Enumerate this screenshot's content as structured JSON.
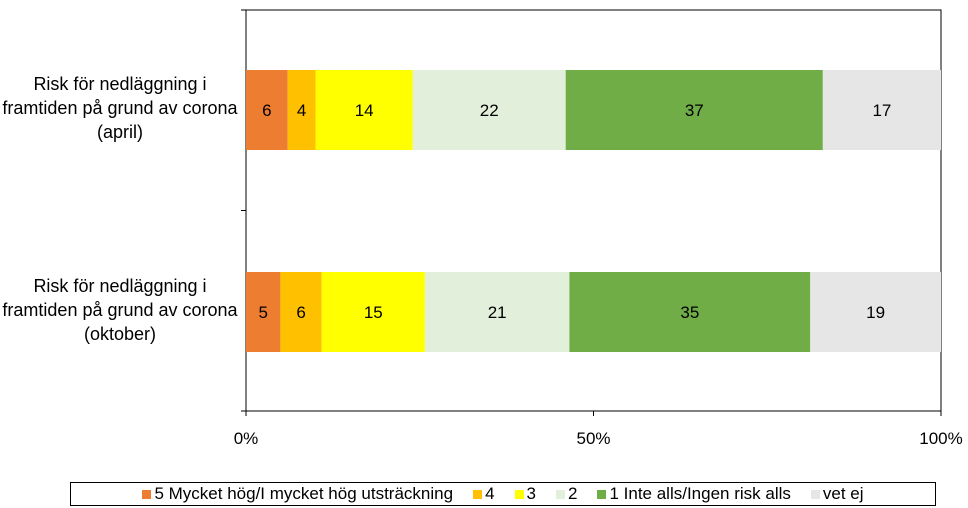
{
  "chart_data": {
    "type": "bar",
    "orientation": "horizontal",
    "stacked": "percent",
    "categories": [
      "Risk för nedläggning i framtiden på grund av corona (april)",
      "Risk för nedläggning i framtiden på grund av corona (oktober)"
    ],
    "series": [
      {
        "name": "5 Mycket hög/I mycket hög utsträckning",
        "color": "#ED7D31",
        "values": [
          6,
          5
        ]
      },
      {
        "name": "4",
        "color": "#FFC000",
        "values": [
          4,
          6
        ]
      },
      {
        "name": "3",
        "color": "#FFFF00",
        "values": [
          14,
          15
        ]
      },
      {
        "name": "2",
        "color": "#E2EFDA",
        "values": [
          22,
          21
        ]
      },
      {
        "name": "1 Inte alls/Ingen risk alls",
        "color": "#70AD47",
        "values": [
          37,
          35
        ]
      },
      {
        "name": "vet ej",
        "color": "#E7E6E6",
        "values": [
          17,
          19
        ]
      }
    ],
    "x_ticks": [
      "0%",
      "50%",
      "100%"
    ],
    "xlim": [
      0,
      100
    ],
    "grid": false,
    "legend_position": "bottom"
  }
}
